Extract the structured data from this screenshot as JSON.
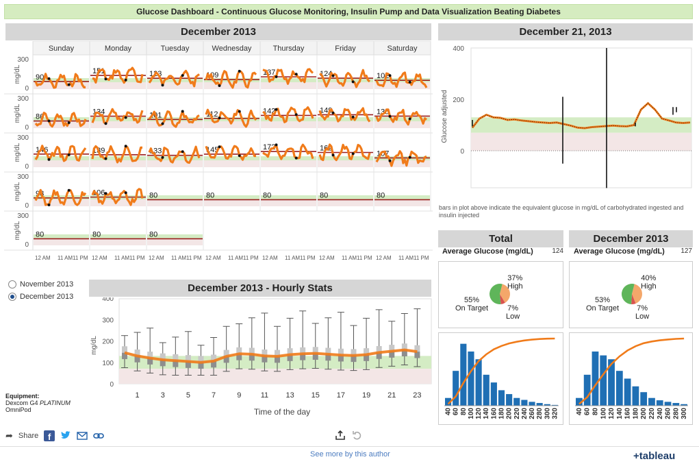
{
  "banner": "Glucose Dashboard - Continuous Glucose Monitoring, Insulin Pump and Data Visualization Beating Diabetes",
  "calendar": {
    "title": "December 2013",
    "days": [
      "Sunday",
      "Monday",
      "Tuesday",
      "Wednesday",
      "Thursday",
      "Friday",
      "Saturday"
    ],
    "y_axis_label": "mg/dL",
    "y_ticks": [
      "300",
      "0"
    ],
    "x_ticks": [
      "12 AM",
      "11 AM",
      "11 PM"
    ],
    "averages": [
      [
        "90",
        "151",
        "123",
        "109",
        "137",
        "124",
        "102"
      ],
      [
        "86",
        "134",
        "101",
        "112",
        "142",
        "149",
        "135"
      ],
      [
        "146",
        "139",
        "133",
        "145",
        "172",
        "162",
        "107"
      ],
      [
        "98",
        "106",
        "80",
        "80",
        "80",
        "80",
        "80"
      ],
      [
        "80",
        "80",
        "80",
        "",
        "",
        "",
        ""
      ]
    ]
  },
  "day_chart": {
    "title": "December 21, 2013",
    "y_label": "Glucose adjusted",
    "y_ticks": [
      "400",
      "200",
      "0"
    ],
    "note": "bars in plot above indicate the equivalent glucose in mg/dL of carbohydrated ingested and insulin injected"
  },
  "month_selector": {
    "options": [
      {
        "label": "November 2013",
        "selected": false
      },
      {
        "label": "December 2013",
        "selected": true
      }
    ]
  },
  "hourly": {
    "title": "December 2013 - Hourly Stats",
    "y_label": "mg/dL",
    "x_label": "Time of the day",
    "y_ticks": [
      "400",
      "300",
      "200",
      "100",
      "0"
    ],
    "x_ticks": [
      "1",
      "3",
      "5",
      "7",
      "9",
      "11",
      "13",
      "15",
      "17",
      "19",
      "21",
      "23"
    ]
  },
  "equipment": {
    "heading": "Equipment:",
    "line1_prefix": "Dexcom G4 ",
    "line1_emph": "PLATINUM",
    "line2": "OmniPod"
  },
  "share": {
    "label": "Share"
  },
  "footer": {
    "link": "See more by this author",
    "brand": "+tableau"
  },
  "stats": [
    {
      "title": "Total",
      "avg_label": "Average Glucose (mg/dL)",
      "avg_value": "124",
      "pie": {
        "high_pct": "37%",
        "high": "High",
        "target_pct": "55%",
        "target": "On Target",
        "low_pct": "7%",
        "low": "Low"
      },
      "hist_ticks": [
        "40",
        "60",
        "80",
        "100",
        "120",
        "140",
        "160",
        "180",
        "200",
        "220",
        "240",
        "260",
        "280",
        "300",
        "320"
      ]
    },
    {
      "title": "December 2013",
      "avg_label": "Average Glucose (mg/dL)",
      "avg_value": "127",
      "pie": {
        "high_pct": "40%",
        "high": "High",
        "target_pct": "53%",
        "target": "On Target",
        "low_pct": "7%",
        "low": "Low"
      },
      "hist_ticks": [
        "40",
        "60",
        "80",
        "100",
        "120",
        "140",
        "160",
        "180",
        "200",
        "220",
        "240",
        "260",
        "280",
        "300"
      ]
    }
  ],
  "chart_data": [
    {
      "type": "pie",
      "title": "Total",
      "slices": [
        {
          "name": "On Target",
          "value": 55
        },
        {
          "name": "High",
          "value": 37
        },
        {
          "name": "Low",
          "value": 7
        }
      ]
    },
    {
      "type": "pie",
      "title": "December 2013",
      "slices": [
        {
          "name": "On Target",
          "value": 53
        },
        {
          "name": "High",
          "value": 40
        },
        {
          "name": "Low",
          "value": 7
        }
      ]
    },
    {
      "type": "bar",
      "title": "Total",
      "categories": [
        "40",
        "60",
        "80",
        "100",
        "120",
        "140",
        "160",
        "180",
        "200",
        "220",
        "240",
        "260",
        "280",
        "300",
        "320"
      ],
      "values": [
        2,
        9,
        16,
        14,
        12,
        8,
        6,
        4,
        3,
        2,
        1.5,
        1,
        0.7,
        0.4,
        0.2
      ]
    },
    {
      "type": "bar",
      "title": "December 2013",
      "categories": [
        "40",
        "60",
        "80",
        "100",
        "120",
        "140",
        "160",
        "180",
        "200",
        "220",
        "240",
        "260",
        "280",
        "300"
      ],
      "values": [
        2,
        8,
        14,
        13,
        12,
        9,
        7,
        5,
        3.5,
        2,
        1.4,
        1,
        0.7,
        0.4
      ]
    },
    {
      "type": "line",
      "title": "December 2013 - Hourly Stats",
      "xlabel": "Time of the day",
      "ylabel": "mg/dL",
      "ylim": [
        0,
        400
      ],
      "x": [
        0,
        1,
        2,
        3,
        4,
        5,
        6,
        7,
        8,
        9,
        10,
        11,
        12,
        13,
        14,
        15,
        16,
        17,
        18,
        19,
        20,
        21,
        22,
        23
      ],
      "series": [
        {
          "values": [
            145,
            130,
            120,
            112,
            108,
            104,
            100,
            106,
            128,
            140,
            138,
            130,
            128,
            136,
            140,
            142,
            138,
            134,
            132,
            136,
            146,
            152,
            158,
            150
          ]
        }
      ]
    }
  ]
}
